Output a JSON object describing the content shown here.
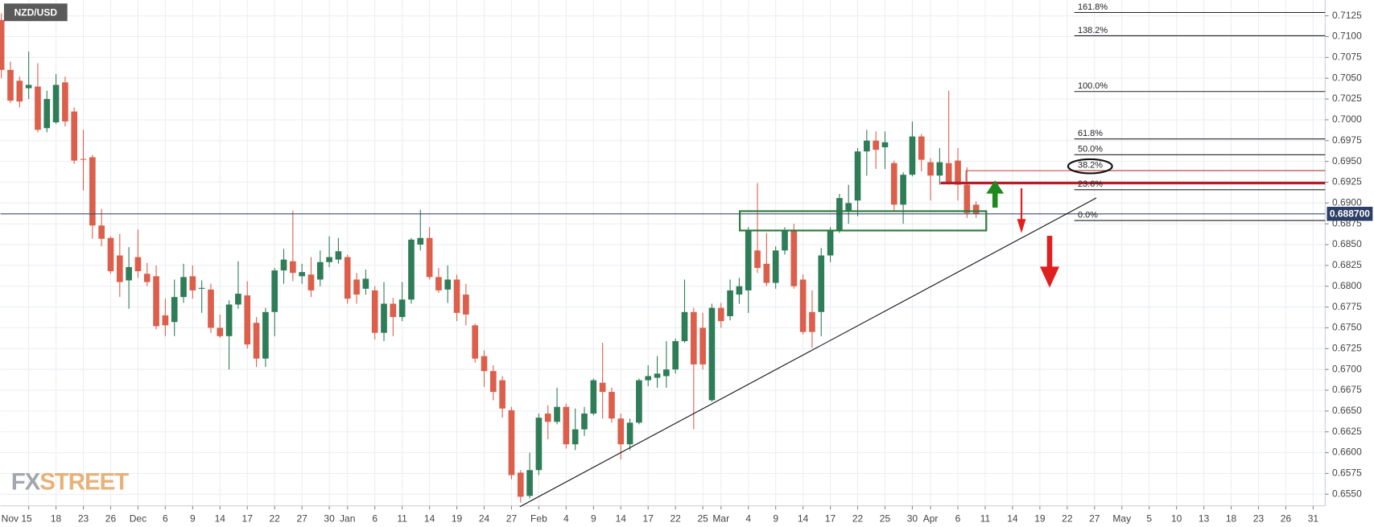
{
  "chart_data": {
    "type": "candlestick",
    "title": "NZD/USD",
    "logo": {
      "first": "FX",
      "second": "STREET"
    },
    "categories": [
      null,
      null,
      null,
      "Nov 15",
      null,
      null,
      "18",
      null,
      null,
      "23",
      null,
      null,
      "26",
      null,
      null,
      "Dec",
      null,
      null,
      "6",
      null,
      null,
      "9",
      null,
      null,
      "14",
      null,
      null,
      "17",
      null,
      null,
      "22",
      null,
      null,
      "27",
      null,
      null,
      "30",
      null,
      "Jan",
      null,
      null,
      "6",
      null,
      null,
      "11",
      null,
      null,
      "14",
      null,
      null,
      "19",
      null,
      null,
      "24",
      null,
      null,
      "27",
      null,
      null,
      "Feb",
      null,
      null,
      "4",
      null,
      null,
      "9",
      null,
      null,
      "14",
      null,
      null,
      "17",
      null,
      null,
      "22",
      null,
      null,
      "25",
      null,
      "Mar",
      null,
      null,
      "4",
      null,
      null,
      "9",
      null,
      null,
      "14",
      null,
      null,
      "17",
      null,
      null,
      "22",
      null,
      null,
      "25",
      null,
      null,
      "30",
      null,
      "Apr",
      null,
      null,
      "6",
      null,
      null,
      "11",
      null,
      null,
      "14",
      null,
      null,
      "19",
      null,
      null,
      "22",
      null,
      null,
      "27",
      null,
      null,
      "May",
      null,
      null,
      "5",
      null,
      null,
      "10",
      null,
      null,
      "13",
      null,
      null,
      "18",
      null,
      null,
      "23",
      null,
      null,
      "26",
      null,
      null,
      "31"
    ],
    "open": [
      0.712,
      0.706,
      0.7047,
      0.7038,
      0.704,
      0.699,
      0.6997,
      0.7045,
      0.701,
      0.6953,
      0.6955,
      0.6873,
      0.6858,
      0.6837,
      0.6807,
      0.6835,
      0.6815,
      0.6812,
      0.6765,
      0.6757,
      0.6787,
      0.6812,
      0.6797,
      0.6796,
      0.675,
      0.674,
      0.6778,
      0.6789,
      0.6756,
      0.6713,
      0.6769,
      0.6819,
      0.683,
      0.6812,
      0.6814,
      0.6808,
      0.6829,
      0.6832,
      0.6835,
      0.6808,
      0.6797,
      0.6795,
      0.6744,
      0.6779,
      0.6763,
      0.6784,
      0.685,
      0.6858,
      0.6811,
      0.6796,
      0.6808,
      0.679,
      0.6753,
      0.6716,
      0.6698,
      0.6687,
      0.6651,
      0.6576,
      0.6548,
      0.6579,
      0.6647,
      0.6637,
      0.6655,
      0.661,
      0.6628,
      0.6647,
      0.6684,
      0.6673,
      0.6641,
      0.661,
      0.6636,
      0.6687,
      0.669,
      0.6692,
      0.67,
      0.6734,
      0.6769,
      0.675,
      0.6663,
      0.6774,
      0.6764,
      0.679,
      0.6795,
      0.6843,
      0.6827,
      0.6804,
      0.6843,
      0.6867,
      0.6808,
      0.6769,
      0.6769,
      0.6837,
      0.6867,
      0.689,
      0.6903,
      0.6962,
      0.6975,
      0.6967,
      0.6948,
      0.6898,
      0.6934,
      0.698,
      0.6949,
      0.6933,
      0.6948,
      0.6951,
      0.6922,
      0.6898,
      null,
      null,
      null,
      null,
      null,
      null,
      null,
      null,
      null,
      null,
      null,
      null,
      null,
      null,
      null,
      null,
      null,
      null,
      null,
      null,
      null,
      null,
      null,
      null,
      null,
      null,
      null,
      null,
      null,
      null,
      null,
      null,
      null,
      null,
      null,
      null,
      null
    ],
    "high": [
      0.7128,
      0.707,
      0.7052,
      0.7082,
      0.7068,
      0.7035,
      0.7055,
      0.7052,
      0.7015,
      0.6988,
      0.6958,
      0.6893,
      0.686,
      0.6863,
      0.6847,
      0.6868,
      0.6828,
      0.6825,
      0.6785,
      0.6808,
      0.6827,
      0.6825,
      0.6807,
      0.6803,
      0.6766,
      0.6783,
      0.683,
      0.6806,
      0.6763,
      0.6774,
      0.6822,
      0.6845,
      0.6891,
      0.6827,
      0.6835,
      0.6843,
      0.686,
      0.6858,
      0.6838,
      0.6816,
      0.682,
      0.68,
      0.6805,
      0.6786,
      0.6805,
      0.6858,
      0.6892,
      0.6871,
      0.6822,
      0.6825,
      0.6814,
      0.6803,
      0.6755,
      0.6723,
      0.6705,
      0.6692,
      0.6655,
      0.6579,
      0.66,
      0.6647,
      0.6657,
      0.6678,
      0.6659,
      0.6653,
      0.6655,
      0.6689,
      0.6732,
      0.6678,
      0.6647,
      0.6641,
      0.6689,
      0.6705,
      0.6716,
      0.6734,
      0.6737,
      0.6808,
      0.6774,
      0.6768,
      0.6779,
      0.678,
      0.6808,
      0.681,
      0.6871,
      0.6924,
      0.6864,
      0.6848,
      0.6871,
      0.6875,
      0.6814,
      0.6795,
      0.6846,
      0.6871,
      0.6911,
      0.6922,
      0.6966,
      0.6988,
      0.6986,
      0.6986,
      0.6951,
      0.6937,
      0.6998,
      0.6983,
      0.6954,
      0.6966,
      0.7035,
      0.6966,
      0.6943,
      0.6902,
      null,
      null,
      null,
      null,
      null,
      null,
      null,
      null,
      null,
      null,
      null,
      null,
      null,
      null,
      null,
      null,
      null,
      null,
      null,
      null,
      null,
      null,
      null,
      null,
      null,
      null,
      null,
      null,
      null,
      null,
      null,
      null,
      null,
      null,
      null,
      null,
      null
    ],
    "low": [
      0.705,
      0.702,
      0.7015,
      0.7025,
      0.6985,
      0.6985,
      0.6995,
      0.6992,
      0.6947,
      0.6915,
      0.6857,
      0.6848,
      0.6815,
      0.6787,
      0.6773,
      0.681,
      0.68,
      0.6748,
      0.674,
      0.674,
      0.678,
      0.6785,
      0.6768,
      0.6744,
      0.6738,
      0.67,
      0.6773,
      0.6725,
      0.6703,
      0.6703,
      0.674,
      0.6803,
      0.6806,
      0.6803,
      0.6787,
      0.68,
      0.6823,
      0.6827,
      0.6779,
      0.6779,
      0.679,
      0.6736,
      0.6734,
      0.674,
      0.6758,
      0.6779,
      0.6843,
      0.6808,
      0.6792,
      0.678,
      0.6758,
      0.6753,
      0.6708,
      0.6679,
      0.6663,
      0.6642,
      0.6568,
      0.654,
      0.6545,
      0.6573,
      0.6616,
      0.6634,
      0.6605,
      0.6603,
      0.662,
      0.6645,
      0.6641,
      0.6636,
      0.6592,
      0.6603,
      0.6634,
      0.668,
      0.6678,
      0.6678,
      0.6695,
      0.6732,
      0.6628,
      0.67,
      0.6661,
      0.675,
      0.6759,
      0.6779,
      0.6768,
      0.6816,
      0.68,
      0.6797,
      0.6838,
      0.6797,
      0.6742,
      0.6726,
      0.674,
      0.6829,
      0.6864,
      0.6875,
      0.6884,
      0.6933,
      0.6941,
      0.6941,
      0.689,
      0.6875,
      0.6932,
      0.6938,
      0.6903,
      0.6922,
      0.6922,
      0.6903,
      0.6882,
      0.6882,
      null,
      null,
      null,
      null,
      null,
      null,
      null,
      null,
      null,
      null,
      null,
      null,
      null,
      null,
      null,
      null,
      null,
      null,
      null,
      null,
      null,
      null,
      null,
      null,
      null,
      null,
      null,
      null,
      null,
      null,
      null,
      null,
      null,
      null,
      null,
      null,
      null
    ],
    "close": [
      0.706,
      0.7023,
      0.7022,
      0.7042,
      0.6988,
      0.7025,
      0.7042,
      0.6998,
      0.6951,
      0.6952,
      0.6873,
      0.6857,
      0.6818,
      0.6805,
      0.6823,
      0.6818,
      0.6805,
      0.6752,
      0.6753,
      0.6787,
      0.6811,
      0.6795,
      0.6798,
      0.675,
      0.674,
      0.6778,
      0.6791,
      0.673,
      0.6713,
      0.6769,
      0.6819,
      0.6832,
      0.6816,
      0.6817,
      0.6795,
      0.6829,
      0.6835,
      0.6842,
      0.6785,
      0.679,
      0.6809,
      0.6744,
      0.6779,
      0.6763,
      0.6784,
      0.6856,
      0.6858,
      0.6811,
      0.6795,
      0.6808,
      0.6768,
      0.6766,
      0.6713,
      0.6698,
      0.6673,
      0.6653,
      0.6573,
      0.6547,
      0.6579,
      0.6642,
      0.6637,
      0.6655,
      0.661,
      0.6628,
      0.6647,
      0.6687,
      0.6673,
      0.6641,
      0.661,
      0.6636,
      0.6687,
      0.6692,
      0.6695,
      0.67,
      0.6734,
      0.6769,
      0.6706,
      0.6706,
      0.6774,
      0.6758,
      0.6795,
      0.68,
      0.6867,
      0.6822,
      0.6804,
      0.6843,
      0.6867,
      0.68,
      0.6745,
      0.6745,
      0.6837,
      0.6867,
      0.6906,
      0.69,
      0.6962,
      0.6975,
      0.6964,
      0.6973,
      0.6898,
      0.6934,
      0.698,
      0.6952,
      0.6933,
      0.6949,
      0.6924,
      0.6922,
      0.6888,
      0.6887,
      null,
      null,
      null,
      null,
      null,
      null,
      null,
      null,
      null,
      null,
      null,
      null,
      null,
      null,
      null,
      null,
      null,
      null,
      null,
      null,
      null,
      null,
      null,
      null,
      null,
      null,
      null,
      null,
      null,
      null,
      null,
      null,
      null,
      null,
      null,
      null,
      null
    ],
    "up_color": "#2f7d58",
    "down_color": "#dc5f4c",
    "ylim": [
      0.6536,
      0.7144
    ],
    "yticks": [
      {
        "value": 0.655,
        "label": "0.6550"
      },
      0.6575,
      {
        "value": 0.66,
        "label": "0.6600"
      },
      0.6625,
      {
        "value": 0.665,
        "label": "0.6650"
      },
      0.6675,
      {
        "value": 0.67,
        "label": "0.6700"
      },
      0.6725,
      {
        "value": 0.675,
        "label": "0.6750"
      },
      0.6775,
      {
        "value": 0.68,
        "label": "0.6800"
      },
      0.6825,
      {
        "value": 0.685,
        "label": "0.6850"
      },
      0.6875,
      {
        "value": 0.69,
        "label": "0.6900"
      },
      0.6925,
      {
        "value": 0.695,
        "label": "0.6950"
      },
      0.6975,
      {
        "value": 0.7,
        "label": "0.7000"
      },
      0.7025,
      {
        "value": 0.705,
        "label": "0.7050"
      },
      0.7075,
      {
        "value": 0.71,
        "label": "0.7100"
      },
      0.7125
    ],
    "grid": true,
    "last_price": {
      "value": 0.6887,
      "label": "0.688700"
    },
    "fib_levels": [
      {
        "label": "161.8%",
        "price": 0.7129
      },
      {
        "label": "138.2%",
        "price": 0.7101
      },
      {
        "label": "100.0%",
        "price": 0.7034
      },
      {
        "label": "61.8%",
        "price": 0.6977
      },
      {
        "label": "50.0%",
        "price": 0.6958
      },
      {
        "label": "38.2%",
        "price": 0.6939
      },
      {
        "label": "23.6%",
        "price": 0.6916
      },
      {
        "label": "0.0%",
        "price": 0.6879
      }
    ]
  }
}
